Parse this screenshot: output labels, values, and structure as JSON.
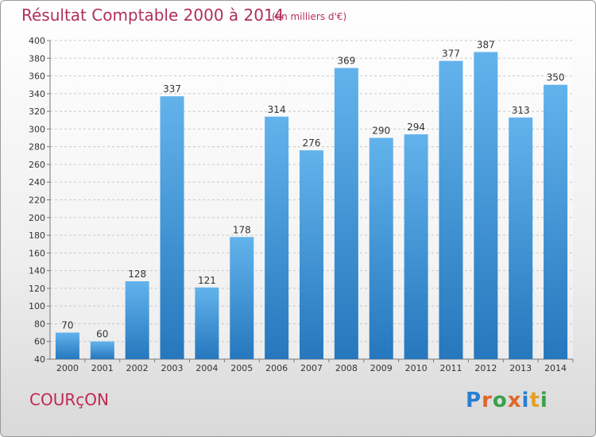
{
  "chart_data": {
    "type": "bar",
    "title": "Résultat Comptable 2000 à 2014",
    "subtitle": "(en milliers d'€)",
    "xlabel": "",
    "ylabel": "",
    "categories": [
      "2000",
      "2001",
      "2002",
      "2003",
      "2004",
      "2005",
      "2006",
      "2007",
      "2008",
      "2009",
      "2010",
      "2011",
      "2012",
      "2013",
      "2014"
    ],
    "values": [
      70,
      60,
      128,
      337,
      121,
      178,
      314,
      276,
      369,
      290,
      294,
      377,
      387,
      313,
      350
    ],
    "ylim": [
      40,
      400
    ],
    "ytick_step": 20,
    "grid": true,
    "bar_color": "#3a8fd4"
  },
  "footer": {
    "commune": "COURçON",
    "logo": "Proxiti"
  },
  "colors": {
    "title": "#b0305a",
    "logo_letters": [
      "#2a7fd0",
      "#e0672a",
      "#3aa14a",
      "#e0672a",
      "#2a7fd0",
      "#e0a02a",
      "#3aa14a"
    ]
  }
}
